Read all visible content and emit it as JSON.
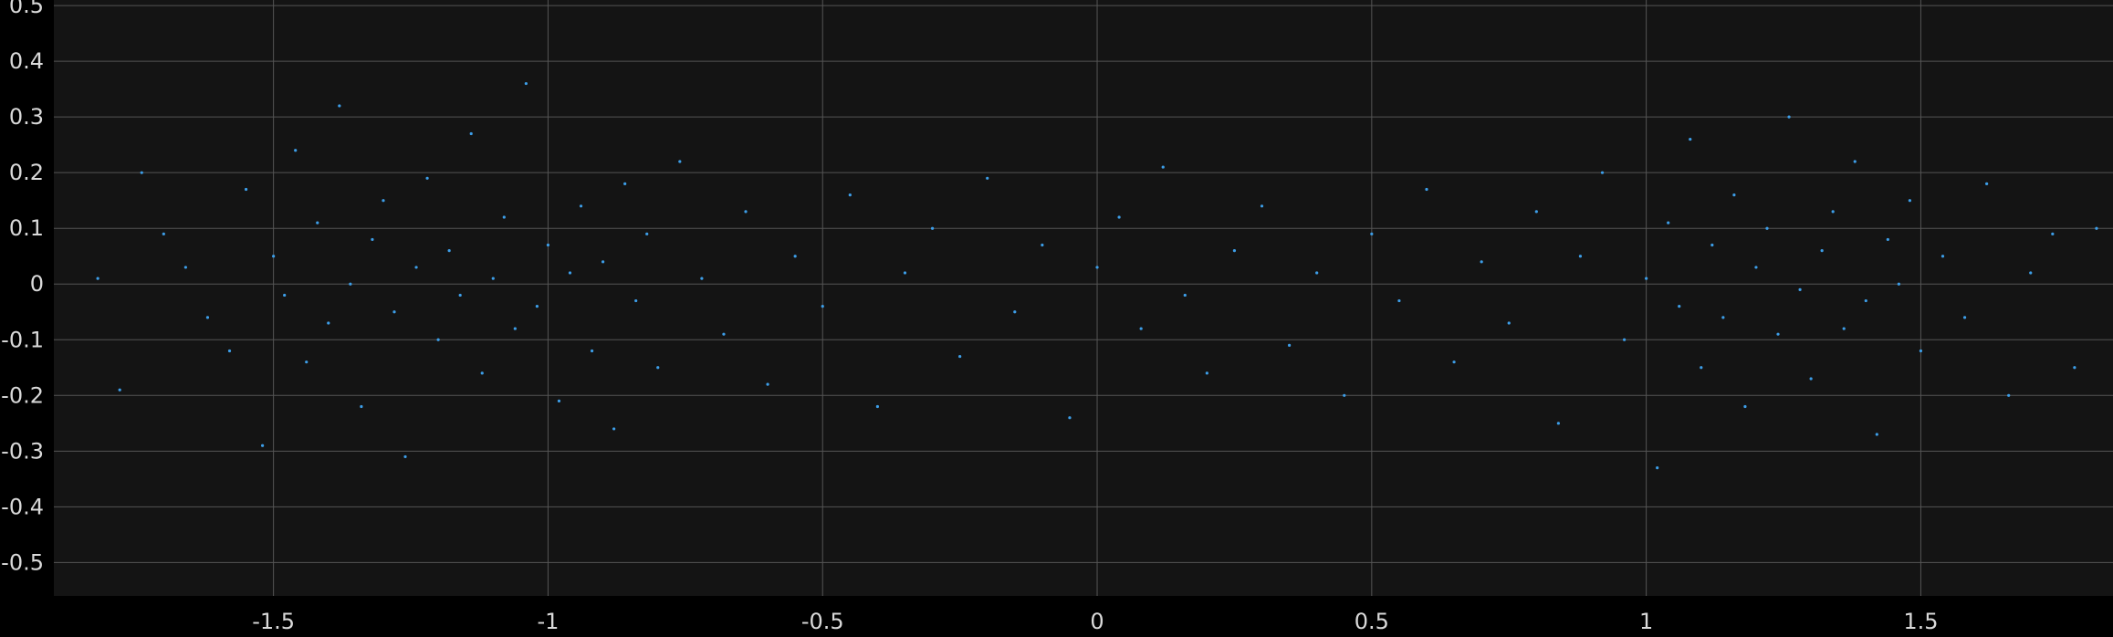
{
  "chart_data": {
    "type": "scatter",
    "title": "",
    "xlabel": "",
    "ylabel": "",
    "xlim": [
      -1.9,
      1.85
    ],
    "ylim": [
      -0.56,
      0.51
    ],
    "grid": true,
    "colors": {
      "figure_background": "#000000",
      "axes_background": "#141414",
      "grid": "#555555",
      "tick_label": "#d9d9d9",
      "marker": "#3d9ee8"
    },
    "x_ticks": [
      {
        "value": -1.5,
        "label": "-1.5"
      },
      {
        "value": -1.0,
        "label": "-1"
      },
      {
        "value": -0.5,
        "label": "-0.5"
      },
      {
        "value": 0.0,
        "label": "0"
      },
      {
        "value": 0.5,
        "label": "0.5"
      },
      {
        "value": 1.0,
        "label": "1"
      },
      {
        "value": 1.5,
        "label": "1.5"
      }
    ],
    "y_ticks": [
      {
        "value": 0.5,
        "label": "0.5"
      },
      {
        "value": 0.4,
        "label": "0.4"
      },
      {
        "value": 0.3,
        "label": "0.3"
      },
      {
        "value": 0.2,
        "label": "0.2"
      },
      {
        "value": 0.1,
        "label": "0.1"
      },
      {
        "value": 0.0,
        "label": "0"
      },
      {
        "value": -0.1,
        "label": "-0.1"
      },
      {
        "value": -0.2,
        "label": "-0.2"
      },
      {
        "value": -0.3,
        "label": "-0.3"
      },
      {
        "value": -0.4,
        "label": "-0.4"
      },
      {
        "value": -0.5,
        "label": "-0.5"
      }
    ],
    "points": [
      [
        -1.82,
        0.01
      ],
      [
        -1.78,
        -0.19
      ],
      [
        -1.74,
        0.2
      ],
      [
        -1.7,
        0.09
      ],
      [
        -1.66,
        0.03
      ],
      [
        -1.62,
        -0.06
      ],
      [
        -1.58,
        -0.12
      ],
      [
        -1.55,
        0.17
      ],
      [
        -1.52,
        -0.29
      ],
      [
        -1.5,
        0.05
      ],
      [
        -1.48,
        -0.02
      ],
      [
        -1.46,
        0.24
      ],
      [
        -1.44,
        -0.14
      ],
      [
        -1.42,
        0.11
      ],
      [
        -1.4,
        -0.07
      ],
      [
        -1.38,
        0.32
      ],
      [
        -1.36,
        0.0
      ],
      [
        -1.34,
        -0.22
      ],
      [
        -1.32,
        0.08
      ],
      [
        -1.3,
        0.15
      ],
      [
        -1.28,
        -0.05
      ],
      [
        -1.26,
        -0.31
      ],
      [
        -1.24,
        0.03
      ],
      [
        -1.22,
        0.19
      ],
      [
        -1.2,
        -0.1
      ],
      [
        -1.18,
        0.06
      ],
      [
        -1.16,
        -0.02
      ],
      [
        -1.14,
        0.27
      ],
      [
        -1.12,
        -0.16
      ],
      [
        -1.1,
        0.01
      ],
      [
        -1.08,
        0.12
      ],
      [
        -1.06,
        -0.08
      ],
      [
        -1.04,
        0.36
      ],
      [
        -1.02,
        -0.04
      ],
      [
        -1.0,
        0.07
      ],
      [
        -0.98,
        -0.21
      ],
      [
        -0.96,
        0.02
      ],
      [
        -0.94,
        0.14
      ],
      [
        -0.92,
        -0.12
      ],
      [
        -0.9,
        0.04
      ],
      [
        -0.88,
        -0.26
      ],
      [
        -0.86,
        0.18
      ],
      [
        -0.84,
        -0.03
      ],
      [
        -0.82,
        0.09
      ],
      [
        -0.8,
        -0.15
      ],
      [
        -0.76,
        0.22
      ],
      [
        -0.72,
        0.01
      ],
      [
        -0.68,
        -0.09
      ],
      [
        -0.64,
        0.13
      ],
      [
        -0.6,
        -0.18
      ],
      [
        -0.55,
        0.05
      ],
      [
        -0.5,
        -0.04
      ],
      [
        -0.45,
        0.16
      ],
      [
        -0.4,
        -0.22
      ],
      [
        -0.35,
        0.02
      ],
      [
        -0.3,
        0.1
      ],
      [
        -0.25,
        -0.13
      ],
      [
        -0.2,
        0.19
      ],
      [
        -0.15,
        -0.05
      ],
      [
        -0.1,
        0.07
      ],
      [
        -0.05,
        -0.24
      ],
      [
        0.0,
        0.03
      ],
      [
        0.04,
        0.12
      ],
      [
        0.08,
        -0.08
      ],
      [
        0.12,
        0.21
      ],
      [
        0.16,
        -0.02
      ],
      [
        0.2,
        -0.16
      ],
      [
        0.25,
        0.06
      ],
      [
        0.3,
        0.14
      ],
      [
        0.35,
        -0.11
      ],
      [
        0.4,
        0.02
      ],
      [
        0.45,
        -0.2
      ],
      [
        0.5,
        0.09
      ],
      [
        0.55,
        -0.03
      ],
      [
        0.6,
        0.17
      ],
      [
        0.65,
        -0.14
      ],
      [
        0.7,
        0.04
      ],
      [
        0.75,
        -0.07
      ],
      [
        0.8,
        0.13
      ],
      [
        0.84,
        -0.25
      ],
      [
        0.88,
        0.05
      ],
      [
        0.92,
        0.2
      ],
      [
        0.96,
        -0.1
      ],
      [
        1.0,
        0.01
      ],
      [
        1.02,
        -0.33
      ],
      [
        1.04,
        0.11
      ],
      [
        1.06,
        -0.04
      ],
      [
        1.08,
        0.26
      ],
      [
        1.1,
        -0.15
      ],
      [
        1.12,
        0.07
      ],
      [
        1.14,
        -0.06
      ],
      [
        1.16,
        0.16
      ],
      [
        1.18,
        -0.22
      ],
      [
        1.2,
        0.03
      ],
      [
        1.22,
        0.1
      ],
      [
        1.24,
        -0.09
      ],
      [
        1.26,
        0.3
      ],
      [
        1.28,
        -0.01
      ],
      [
        1.3,
        -0.17
      ],
      [
        1.32,
        0.06
      ],
      [
        1.34,
        0.13
      ],
      [
        1.36,
        -0.08
      ],
      [
        1.38,
        0.22
      ],
      [
        1.4,
        -0.03
      ],
      [
        1.42,
        -0.27
      ],
      [
        1.44,
        0.08
      ],
      [
        1.46,
        0.0
      ],
      [
        1.48,
        0.15
      ],
      [
        1.5,
        -0.12
      ],
      [
        1.54,
        0.05
      ],
      [
        1.58,
        -0.06
      ],
      [
        1.62,
        0.18
      ],
      [
        1.66,
        -0.2
      ],
      [
        1.7,
        0.02
      ],
      [
        1.74,
        0.09
      ],
      [
        1.78,
        -0.15
      ],
      [
        1.82,
        0.1
      ]
    ]
  }
}
